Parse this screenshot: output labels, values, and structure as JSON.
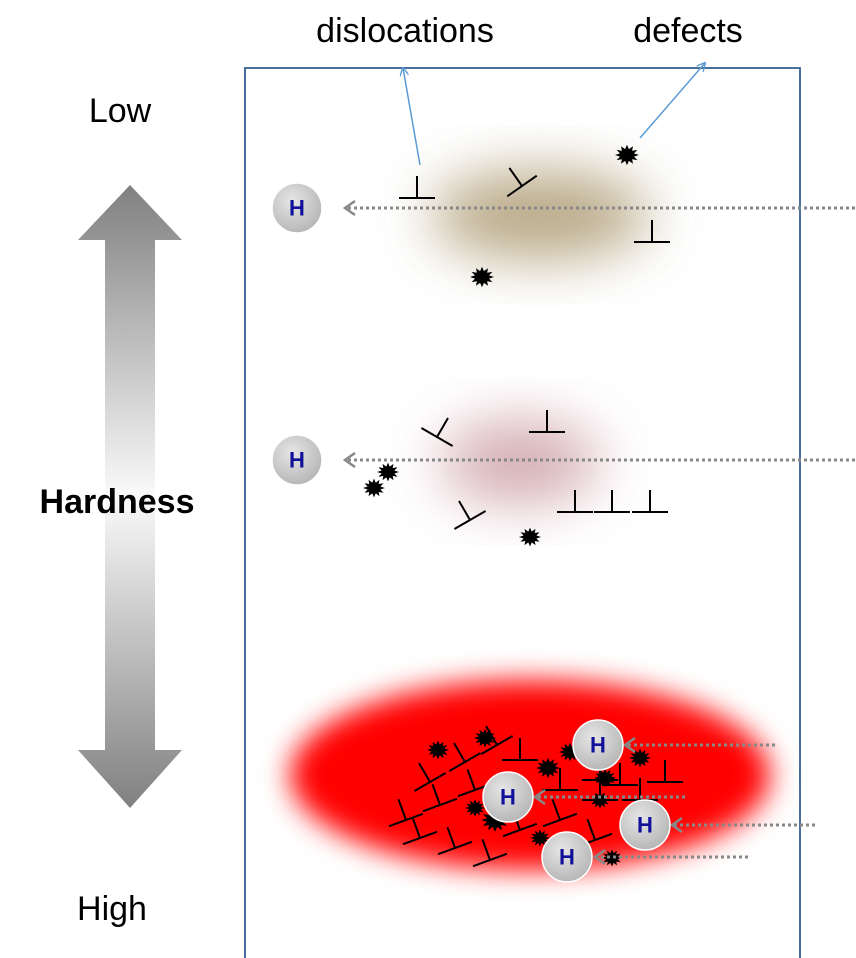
{
  "labels": {
    "dislocations": "dislocations",
    "defects": "defects"
  },
  "scale": {
    "top": "Low",
    "middle": "Hardness",
    "bottom": "High"
  },
  "hydrogen": [
    "H",
    "H",
    "H",
    "H",
    "H",
    "H"
  ]
}
